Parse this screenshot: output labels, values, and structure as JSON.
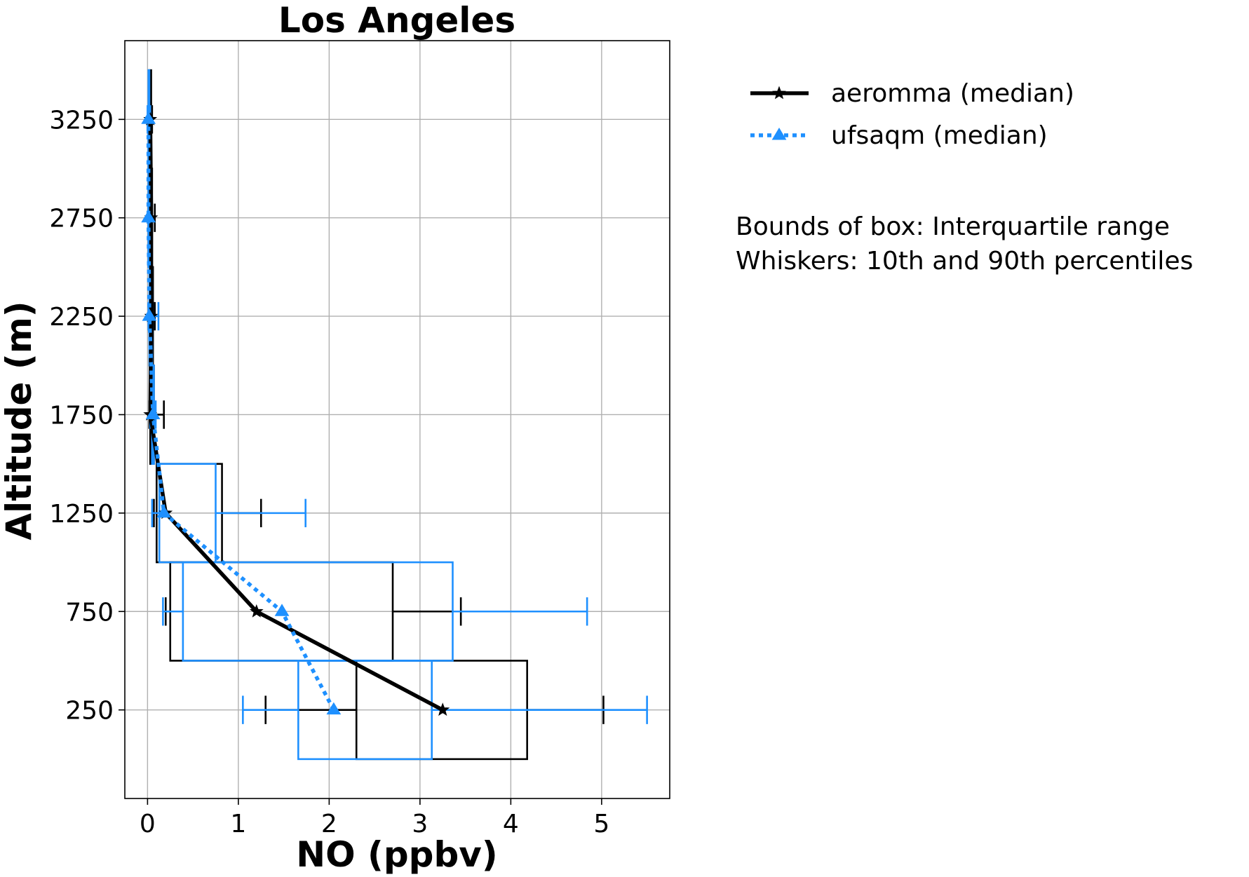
{
  "chart_data": {
    "type": "boxplot-profile",
    "title": "Los Angeles",
    "xlabel": "NO (ppbv)",
    "ylabel": "Altitude (m)",
    "xlim": [
      -0.25,
      5.75
    ],
    "ylim": [
      -200,
      3650
    ],
    "xticks": [
      0,
      1,
      2,
      3,
      4,
      5
    ],
    "yticks": [
      250,
      750,
      1250,
      1750,
      2250,
      2750,
      3250
    ],
    "grid": true,
    "legend_position": "right-top",
    "series": [
      {
        "name": "aeromma (median)",
        "color": "#000000",
        "line_style": "solid",
        "marker": "star",
        "median_line": [
          [
            3.25,
            250
          ],
          [
            1.2,
            750
          ],
          [
            0.2,
            1250
          ],
          [
            0.03,
            1750
          ],
          [
            0.04,
            2250
          ],
          [
            0.04,
            2750
          ],
          [
            0.03,
            3250
          ]
        ],
        "boxes": [
          {
            "y": 250,
            "p10": 1.3,
            "q1": 2.3,
            "q3": 4.18,
            "p90": 5.02
          },
          {
            "y": 750,
            "p10": 0.2,
            "q1": 0.25,
            "q3": 2.7,
            "p90": 3.45
          },
          {
            "y": 1250,
            "p10": 0.07,
            "q1": 0.1,
            "q3": 0.82,
            "p90": 1.25
          },
          {
            "y": 1750,
            "p10": 0.02,
            "q1": 0.03,
            "q3": 0.07,
            "p90": 0.18
          },
          {
            "y": 2250,
            "p10": 0.02,
            "q1": 0.03,
            "q3": 0.06,
            "p90": 0.08
          },
          {
            "y": 2750,
            "p10": 0.02,
            "q1": 0.03,
            "q3": 0.05,
            "p90": 0.08
          },
          {
            "y": 3250,
            "p10": 0.02,
            "q1": 0.02,
            "q3": 0.04,
            "p90": 0.05
          }
        ]
      },
      {
        "name": "ufsaqm (median)",
        "color": "#1e90ff",
        "line_style": "dotted",
        "marker": "triangle",
        "median_line": [
          [
            2.05,
            250
          ],
          [
            1.48,
            750
          ],
          [
            0.18,
            1250
          ],
          [
            0.06,
            1750
          ],
          [
            0.02,
            2250
          ],
          [
            0.01,
            2750
          ],
          [
            0.01,
            3250
          ]
        ],
        "boxes": [
          {
            "y": 250,
            "p10": 1.05,
            "q1": 1.66,
            "q3": 3.13,
            "p90": 5.5
          },
          {
            "y": 750,
            "p10": 0.17,
            "q1": 0.39,
            "q3": 3.36,
            "p90": 4.84
          },
          {
            "y": 1250,
            "p10": 0.05,
            "q1": 0.13,
            "q3": 0.75,
            "p90": 1.74
          },
          {
            "y": 1750,
            "p10": 0.03,
            "q1": 0.05,
            "q3": 0.07,
            "p90": 0.09
          },
          {
            "y": 2250,
            "p10": 0.01,
            "q1": 0.02,
            "q3": 0.05,
            "p90": 0.12
          },
          {
            "y": 2750,
            "p10": 0.01,
            "q1": 0.01,
            "q3": 0.02,
            "p90": 0.03
          },
          {
            "y": 3250,
            "p10": 0.0,
            "q1": 0.01,
            "q3": 0.02,
            "p90": 0.03
          }
        ]
      }
    ],
    "annotations": [
      "Bounds of box: Interquartile range",
      "Whiskers: 10th and 90th percentiles"
    ]
  }
}
